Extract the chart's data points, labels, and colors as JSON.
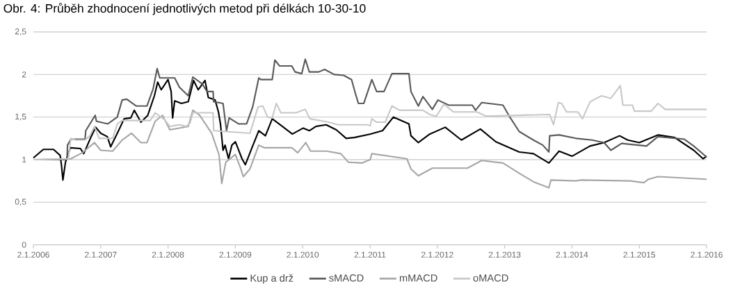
{
  "chart_data": {
    "type": "line",
    "title": "Obr. 4: Průběh zhodnocení jednotlivých metod při délkách 10-30-10",
    "xlim": [
      "2006-01-02",
      "2016-01-02"
    ],
    "xticks": [
      {
        "value": "2006-01-02",
        "label": "2.1.2006"
      },
      {
        "value": "2007-01-02",
        "label": "2.1.2007"
      },
      {
        "value": "2008-01-02",
        "label": "2.1.2008"
      },
      {
        "value": "2009-01-02",
        "label": "2.1.2009"
      },
      {
        "value": "2010-01-02",
        "label": "2.1.2010"
      },
      {
        "value": "2011-01-02",
        "label": "2.1.2011"
      },
      {
        "value": "2012-01-02",
        "label": "2.1.2012"
      },
      {
        "value": "2013-01-02",
        "label": "2.1.2013"
      },
      {
        "value": "2014-01-02",
        "label": "2.1.2014"
      },
      {
        "value": "2015-01-02",
        "label": "2.1.2015"
      },
      {
        "value": "2016-01-02",
        "label": "2.1.2016"
      }
    ],
    "ylim": [
      0,
      2.5
    ],
    "yticks": [
      0,
      {
        "value": 0.5,
        "label": "0,5"
      },
      1,
      {
        "value": 1.5,
        "label": "1,5"
      },
      2,
      {
        "value": 2.5,
        "label": "2,5"
      }
    ],
    "grid": "y",
    "legend": "bottom",
    "marker": "none",
    "line_style": "solid",
    "series": [
      {
        "name": "Kup a drž",
        "color": "#000000",
        "x": [
          "2006-01-02",
          "2006-02-25",
          "2006-04-21",
          "2006-05-27",
          "2006-06-03",
          "2006-06-11",
          "2006-06-25",
          "2006-07-21",
          "2006-09-14",
          "2006-10-02",
          "2006-11-07",
          "2006-12-06",
          "2007-01-02",
          "2007-02-07",
          "2007-02-25",
          "2007-04-02",
          "2007-05-09",
          "2007-06-14",
          "2007-07-03",
          "2007-08-08",
          "2007-09-14",
          "2007-10-20",
          "2007-11-07",
          "2007-11-26",
          "2008-01-02",
          "2008-01-19",
          "2008-01-27",
          "2008-02-07",
          "2008-03-15",
          "2008-04-21",
          "2008-05-20",
          "2008-06-14",
          "2008-07-21",
          "2008-08-08",
          "2008-09-14",
          "2008-10-02",
          "2008-10-13",
          "2008-10-27",
          "2008-11-07",
          "2008-11-26",
          "2008-12-14",
          "2009-01-02",
          "2009-02-07",
          "2009-02-25",
          "2009-04-02",
          "2009-05-09",
          "2009-06-14",
          "2009-07-21",
          "2009-09-14",
          "2009-11-07",
          "2010-01-04",
          "2010-02-07",
          "2010-03-15",
          "2010-05-09",
          "2010-07-03",
          "2010-08-26",
          "2010-10-09",
          "2011-01-03",
          "2011-03-11",
          "2011-05-09",
          "2011-08-01",
          "2011-08-12",
          "2011-09-21",
          "2011-11-22",
          "2012-02-14",
          "2012-05-12",
          "2012-08-23",
          "2012-11-15",
          "2013-03-22",
          "2013-06-07",
          "2013-08-30",
          "2013-10-24",
          "2014-01-02",
          "2014-04-10",
          "2014-06-25",
          "2014-09-17",
          "2014-10-31",
          "2015-01-02",
          "2015-04-13",
          "2015-07-13",
          "2015-10-24",
          "2015-12-14",
          "2016-01-02"
        ],
        "values": [
          1.02,
          1.12,
          1.12,
          1.05,
          0.94,
          0.76,
          0.97,
          1.14,
          1.13,
          1.07,
          1.25,
          1.38,
          1.31,
          1.27,
          1.15,
          1.31,
          1.48,
          1.49,
          1.58,
          1.44,
          1.52,
          1.75,
          1.91,
          1.82,
          1.94,
          1.8,
          1.49,
          1.69,
          1.66,
          1.68,
          1.93,
          1.82,
          1.93,
          1.73,
          1.7,
          1.56,
          1.42,
          1.11,
          1.17,
          1.01,
          1.17,
          1.21,
          1.01,
          0.94,
          1.14,
          1.34,
          1.28,
          1.48,
          1.39,
          1.3,
          1.37,
          1.34,
          1.39,
          1.41,
          1.35,
          1.25,
          1.26,
          1.3,
          1.34,
          1.5,
          1.42,
          1.28,
          1.2,
          1.3,
          1.38,
          1.23,
          1.36,
          1.21,
          1.09,
          1.07,
          0.96,
          1.1,
          1.04,
          1.16,
          1.2,
          1.28,
          1.23,
          1.2,
          1.29,
          1.26,
          1.11,
          1.01,
          1.04
        ]
      },
      {
        "name": "sMACD",
        "color": "#595959",
        "x": [
          "2006-01-02",
          "2006-07-03",
          "2006-07-06",
          "2006-07-24",
          "2006-10-09",
          "2006-10-13",
          "2006-12-03",
          "2006-12-10",
          "2007-02-10",
          "2007-04-02",
          "2007-04-28",
          "2007-05-23",
          "2007-07-13",
          "2007-09-10",
          "2007-10-13",
          "2007-11-04",
          "2007-11-18",
          "2008-02-07",
          "2008-03-04",
          "2008-04-21",
          "2008-05-16",
          "2008-07-06",
          "2008-08-01",
          "2008-09-03",
          "2008-09-06",
          "2008-10-27",
          "2008-11-15",
          "2008-11-29",
          "2009-01-19",
          "2009-03-04",
          "2009-04-06",
          "2009-05-09",
          "2009-05-20",
          "2009-07-21",
          "2009-08-04",
          "2009-08-30",
          "2009-11-04",
          "2009-11-22",
          "2009-12-28",
          "2010-01-16",
          "2010-02-07",
          "2010-03-30",
          "2010-05-01",
          "2010-06-22",
          "2010-08-12",
          "2010-09-24",
          "2010-10-13",
          "2010-10-31",
          "2010-11-29",
          "2011-01-12",
          "2011-02-07",
          "2011-03-19",
          "2011-05-01",
          "2011-08-01",
          "2011-08-12",
          "2011-09-21",
          "2011-10-16",
          "2011-12-06",
          "2012-01-05",
          "2012-03-04",
          "2012-07-10",
          "2012-07-28",
          "2012-08-30",
          "2012-12-24",
          "2013-01-30",
          "2013-03-22",
          "2013-06-07",
          "2013-07-28",
          "2013-08-30",
          "2013-09-03",
          "2013-10-24",
          "2014-01-23",
          "2014-04-21",
          "2014-06-25",
          "2014-08-01",
          "2014-09-28",
          "2015-02-10",
          "2015-04-13",
          "2015-09-03",
          "2015-10-24",
          "2016-01-02"
        ],
        "values": [
          1.0,
          1.0,
          1.17,
          1.24,
          1.24,
          1.34,
          1.52,
          1.45,
          1.42,
          1.5,
          1.7,
          1.71,
          1.63,
          1.63,
          1.83,
          2.07,
          1.96,
          1.96,
          1.85,
          1.75,
          1.97,
          1.89,
          1.8,
          1.8,
          1.68,
          1.66,
          1.34,
          1.49,
          1.42,
          1.42,
          1.62,
          1.96,
          1.94,
          1.94,
          2.17,
          2.1,
          2.1,
          2.03,
          2.01,
          2.18,
          2.03,
          2.03,
          2.06,
          2.0,
          1.99,
          1.94,
          1.79,
          1.66,
          1.66,
          1.94,
          1.8,
          1.8,
          2.01,
          2.01,
          1.8,
          1.63,
          1.74,
          1.59,
          1.7,
          1.64,
          1.64,
          1.58,
          1.67,
          1.64,
          1.5,
          1.33,
          1.23,
          1.17,
          1.09,
          1.28,
          1.29,
          1.25,
          1.23,
          1.2,
          1.11,
          1.19,
          1.16,
          1.27,
          1.24,
          1.16,
          1.03
        ]
      },
      {
        "name": "mMACD",
        "color": "#a6a6a6",
        "x": [
          "2006-01-02",
          "2006-07-24",
          "2006-09-24",
          "2006-11-29",
          "2007-01-02",
          "2007-03-08",
          "2007-04-28",
          "2007-06-18",
          "2007-08-08",
          "2007-09-10",
          "2007-10-24",
          "2007-12-03",
          "2008-01-12",
          "2008-04-21",
          "2008-05-16",
          "2008-06-22",
          "2008-08-26",
          "2008-10-05",
          "2008-10-20",
          "2008-11-11",
          "2009-01-02",
          "2009-01-27",
          "2009-02-14",
          "2009-03-22",
          "2009-05-09",
          "2009-06-07",
          "2009-11-04",
          "2009-12-06",
          "2010-01-19",
          "2010-02-14",
          "2010-05-12",
          "2010-07-28",
          "2010-09-06",
          "2010-11-18",
          "2011-01-03",
          "2011-01-12",
          "2011-07-21",
          "2011-08-12",
          "2011-09-21",
          "2011-12-06",
          "2012-01-12",
          "2012-06-14",
          "2012-08-30",
          "2012-12-24",
          "2013-03-22",
          "2013-06-07",
          "2013-08-30",
          "2013-09-10",
          "2014-01-23",
          "2014-02-17",
          "2014-11-11",
          "2015-01-27",
          "2015-02-21",
          "2015-04-13",
          "2016-01-02"
        ],
        "values": [
          1.0,
          1.01,
          1.08,
          1.2,
          1.11,
          1.1,
          1.23,
          1.31,
          1.2,
          1.2,
          1.45,
          1.52,
          1.35,
          1.39,
          1.58,
          1.52,
          1.31,
          1.06,
          0.72,
          0.97,
          1.06,
          0.92,
          0.8,
          0.89,
          1.17,
          1.14,
          1.14,
          1.08,
          1.2,
          1.1,
          1.1,
          1.07,
          0.97,
          0.96,
          1.0,
          1.07,
          1.01,
          0.89,
          0.81,
          0.9,
          0.9,
          0.9,
          0.99,
          0.96,
          0.84,
          0.74,
          0.67,
          0.76,
          0.75,
          0.76,
          0.75,
          0.73,
          0.77,
          0.8,
          0.77
        ]
      },
      {
        "name": "oMACD",
        "color": "#c8c8c8",
        "x": [
          "2006-01-02",
          "2006-07-10",
          "2006-07-24",
          "2006-08-19",
          "2006-10-09",
          "2006-11-04",
          "2006-11-29",
          "2006-12-24",
          "2007-03-08",
          "2007-04-02",
          "2007-04-28",
          "2007-09-28",
          "2007-10-24",
          "2007-12-14",
          "2008-01-12",
          "2008-03-04",
          "2008-04-10",
          "2008-05-01",
          "2008-05-16",
          "2008-09-03",
          "2008-09-06",
          "2009-03-22",
          "2009-04-10",
          "2009-05-05",
          "2009-05-31",
          "2009-06-25",
          "2009-07-21",
          "2009-08-12",
          "2009-09-06",
          "2009-11-26",
          "2010-01-16",
          "2010-02-10",
          "2010-05-23",
          "2010-07-13",
          "2010-12-14",
          "2011-01-03",
          "2011-01-12",
          "2011-02-07",
          "2011-03-26",
          "2011-05-01",
          "2011-06-11",
          "2011-10-16",
          "2011-11-22",
          "2011-12-28",
          "2012-02-07",
          "2012-03-30",
          "2012-08-04",
          "2012-09-24",
          "2013-09-03",
          "2013-09-24",
          "2013-10-20",
          "2013-11-07",
          "2013-12-03",
          "2014-02-03",
          "2014-02-28",
          "2014-04-10",
          "2014-06-11",
          "2014-08-01",
          "2014-09-21",
          "2014-10-05",
          "2014-11-26",
          "2014-12-06",
          "2015-03-08",
          "2015-04-13",
          "2015-05-23",
          "2016-01-02"
        ],
        "values": [
          1.0,
          1.01,
          1.25,
          1.23,
          1.23,
          1.28,
          1.39,
          1.25,
          1.25,
          1.42,
          1.46,
          1.46,
          1.55,
          1.47,
          1.39,
          1.41,
          1.39,
          1.43,
          1.55,
          1.55,
          1.34,
          1.31,
          1.44,
          1.62,
          1.63,
          1.5,
          1.49,
          1.66,
          1.55,
          1.55,
          1.59,
          1.48,
          1.44,
          1.41,
          1.41,
          1.4,
          1.48,
          1.44,
          1.44,
          1.63,
          1.58,
          1.58,
          1.53,
          1.51,
          1.65,
          1.56,
          1.56,
          1.51,
          1.53,
          1.41,
          1.67,
          1.66,
          1.56,
          1.56,
          1.48,
          1.68,
          1.75,
          1.72,
          1.87,
          1.64,
          1.64,
          1.57,
          1.57,
          1.66,
          1.59,
          1.59
        ]
      }
    ]
  }
}
